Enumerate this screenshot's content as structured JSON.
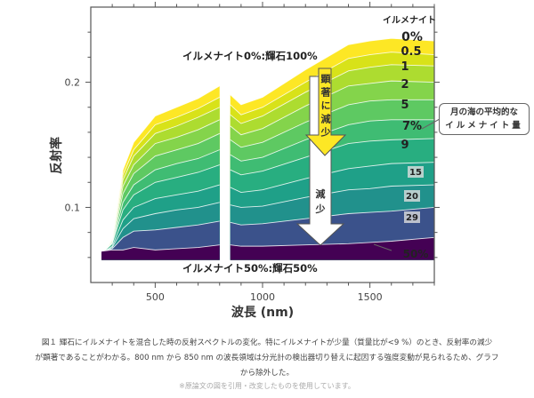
{
  "chart_data": {
    "type": "area",
    "xlabel": "波長 (nm)",
    "ylabel": "反射率",
    "xlim": [
      200,
      1800
    ],
    "ylim": [
      0.04,
      0.26
    ],
    "xticks": [
      500,
      1000,
      1500
    ],
    "yticks": [
      0.1,
      0.2
    ],
    "grid": false,
    "gap_range_nm": [
      800,
      850
    ],
    "x": [
      250,
      300,
      350,
      400,
      500,
      600,
      700,
      800,
      850,
      900,
      1000,
      1200,
      1400,
      1500,
      1600,
      1800
    ],
    "legend_title": "イルメナイト",
    "series": [
      {
        "name": "0%",
        "color": "#fde725",
        "values": [
          0.06,
          0.075,
          0.13,
          0.152,
          0.173,
          0.18,
          0.187,
          0.197,
          0.19,
          0.182,
          0.188,
          0.21,
          0.23,
          0.233,
          0.235,
          0.233
        ]
      },
      {
        "name": "0.5",
        "color": "#d8e219",
        "values": [
          0.06,
          0.074,
          0.126,
          0.146,
          0.166,
          0.172,
          0.179,
          0.188,
          0.182,
          0.174,
          0.18,
          0.2,
          0.219,
          0.222,
          0.224,
          0.222
        ]
      },
      {
        "name": "1",
        "color": "#addc30",
        "values": [
          0.061,
          0.074,
          0.122,
          0.141,
          0.159,
          0.165,
          0.172,
          0.18,
          0.174,
          0.167,
          0.173,
          0.192,
          0.209,
          0.212,
          0.214,
          0.213
        ]
      },
      {
        "name": "2",
        "color": "#84d44b",
        "values": [
          0.061,
          0.073,
          0.117,
          0.134,
          0.151,
          0.156,
          0.162,
          0.17,
          0.165,
          0.158,
          0.163,
          0.181,
          0.197,
          0.199,
          0.201,
          0.2
        ]
      },
      {
        "name": "5",
        "color": "#5ec962",
        "values": [
          0.062,
          0.072,
          0.111,
          0.127,
          0.141,
          0.146,
          0.151,
          0.159,
          0.154,
          0.148,
          0.152,
          0.168,
          0.182,
          0.185,
          0.186,
          0.186
        ]
      },
      {
        "name": "7%",
        "color": "#3fbc73",
        "values": [
          0.062,
          0.071,
          0.104,
          0.118,
          0.13,
          0.135,
          0.139,
          0.146,
          0.142,
          0.137,
          0.14,
          0.154,
          0.166,
          0.169,
          0.17,
          0.17
        ]
      },
      {
        "name": "9",
        "color": "#28ae80",
        "values": [
          0.063,
          0.071,
          0.098,
          0.11,
          0.12,
          0.124,
          0.128,
          0.134,
          0.13,
          0.126,
          0.129,
          0.14,
          0.151,
          0.153,
          0.154,
          0.155
        ]
      },
      {
        "name": "15",
        "color": "#1fa088",
        "values": [
          0.063,
          0.069,
          0.09,
          0.1,
          0.107,
          0.11,
          0.113,
          0.118,
          0.116,
          0.112,
          0.114,
          0.123,
          0.131,
          0.133,
          0.135,
          0.136
        ]
      },
      {
        "name": "20",
        "color": "#21918c",
        "values": [
          0.064,
          0.068,
          0.083,
          0.091,
          0.095,
          0.098,
          0.1,
          0.104,
          0.102,
          0.1,
          0.101,
          0.108,
          0.114,
          0.115,
          0.117,
          0.118
        ]
      },
      {
        "name": "29",
        "color": "#3b528b",
        "values": [
          0.064,
          0.067,
          0.076,
          0.081,
          0.082,
          0.084,
          0.086,
          0.089,
          0.088,
          0.086,
          0.087,
          0.091,
          0.095,
          0.096,
          0.097,
          0.1
        ]
      },
      {
        "name": "50%",
        "color": "#440154",
        "values": [
          0.065,
          0.066,
          0.066,
          0.068,
          0.066,
          0.067,
          0.068,
          0.07,
          0.07,
          0.069,
          0.069,
          0.07,
          0.071,
          0.072,
          0.073,
          0.076
        ]
      }
    ],
    "annotations": {
      "top": "イルメナイト0%:輝石100%",
      "bottom": "イルメナイト50%:輝石50%",
      "arrow_strong": "顕著に減少",
      "arrow_weak": "減少",
      "callout_line1": "月の海の平均的な",
      "callout_line2": "イルメナイト量"
    }
  },
  "caption": {
    "line1": "図１ 輝石にイルメナイトを混合した時の反射スペクトルの変化。特にイルメナイトが少量（質量比が<9 %）のとき、反射率の減少",
    "line2": "が顕著であることがわかる。800 nm から 850 nm の波長領域は分光計の検出器切り替えに起因する強度変動が見られるため、グラフ",
    "line3": "から除外した。",
    "note": "※原論文の図を引用・改変したものを使用しています。"
  }
}
